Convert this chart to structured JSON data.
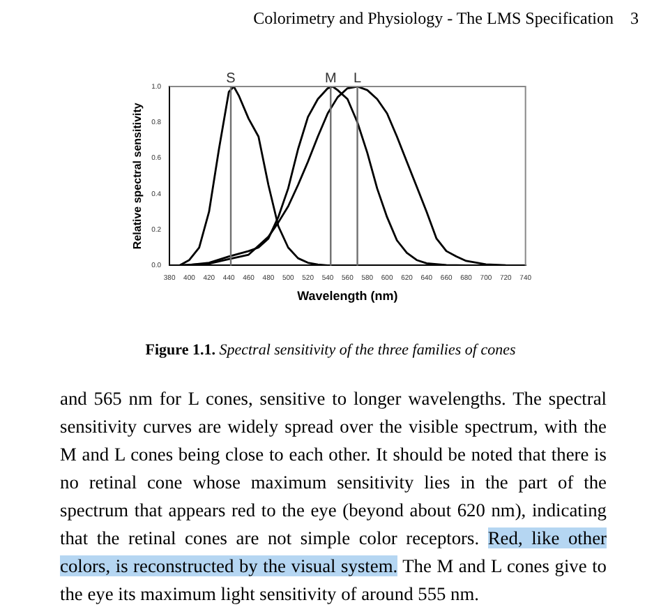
{
  "chart_data": {
    "type": "line",
    "xlabel": "Wavelength (nm)",
    "ylabel": "Relative spectral sensitivity",
    "annotations": [
      "Colorimetry and Physiology - The LMS Specification    3",
      "Figure 1.1.",
      "Spectral sensitivity of the three families of cones",
      "and 565 nm for L cones, sensitive to longer wavelengths. The spectral sensitivity curves are widely spread over the visible spectrum, with the M and L cones being close to each other. It should be noted that there is no retinal cone whose maximum sensitivity lies in the part of the spectrum that appears red to the eye (beyond about 620 nm), indicating that the retinal cones are not simple color receptors.",
      "Red, like other colors, is reconstructed by the visual system.",
      "The M and L cones give to the eye its maximum light sensitivity of around 555 nm."
    ],
    "series": [
      {
        "color": "#000000",
        "x": [
          390,
          400,
          410,
          420,
          430,
          440,
          445,
          450,
          460,
          470,
          480,
          490,
          500,
          510,
          520,
          530,
          540
        ],
        "values": [
          0,
          0.03,
          0.1,
          0.3,
          0.65,
          0.97,
          1.0,
          0.95,
          0.82,
          0.72,
          0.45,
          0.22,
          0.1,
          0.04,
          0.015,
          0.005,
          0
        ]
      },
      {
        "color": "#000000",
        "x": [
          390,
          400,
          420,
          440,
          460,
          470,
          480,
          490,
          500,
          510,
          520,
          530,
          540,
          545,
          550,
          560,
          570,
          580,
          590,
          600,
          610,
          620,
          630,
          640,
          660,
          680
        ],
        "values": [
          0,
          0.003,
          0.015,
          0.05,
          0.08,
          0.1,
          0.15,
          0.27,
          0.43,
          0.65,
          0.83,
          0.93,
          0.99,
          1.0,
          0.98,
          0.93,
          0.8,
          0.63,
          0.43,
          0.27,
          0.14,
          0.07,
          0.03,
          0.012,
          0.002,
          0
        ]
      },
      {
        "color": "#000000",
        "x": [
          390,
          420,
          440,
          460,
          480,
          490,
          500,
          510,
          520,
          530,
          540,
          550,
          560,
          570,
          580,
          590,
          600,
          610,
          620,
          630,
          640,
          650,
          660,
          670,
          680,
          700,
          720,
          740
        ],
        "values": [
          0,
          0.01,
          0.035,
          0.06,
          0.16,
          0.24,
          0.33,
          0.45,
          0.58,
          0.72,
          0.85,
          0.94,
          0.99,
          1.0,
          0.98,
          0.93,
          0.85,
          0.72,
          0.58,
          0.44,
          0.3,
          0.15,
          0.08,
          0.05,
          0.025,
          0.006,
          0.001,
          0
        ]
      }
    ],
    "ref_lines": [
      {
        "axis": "x",
        "value": 442,
        "label": "S",
        "color": "#707070"
      },
      {
        "axis": "x",
        "value": 543,
        "label": "M",
        "color": "#707070"
      },
      {
        "axis": "x",
        "value": 570,
        "label": "L",
        "color": "#707070"
      }
    ],
    "xlim": [
      380,
      740
    ],
    "xticks": [
      380,
      400,
      420,
      440,
      460,
      480,
      500,
      520,
      540,
      560,
      580,
      600,
      620,
      640,
      660,
      680,
      700,
      720,
      740
    ],
    "ylim": [
      0,
      1.0
    ],
    "yticks": [
      {
        "value": 0,
        "label": "0.0"
      },
      0.2,
      0.4,
      0.6,
      0.8,
      {
        "value": 1.0,
        "label": "1.0"
      }
    ],
    "grid": false,
    "legend": false,
    "marker": "none",
    "line_style": "solid"
  }
}
